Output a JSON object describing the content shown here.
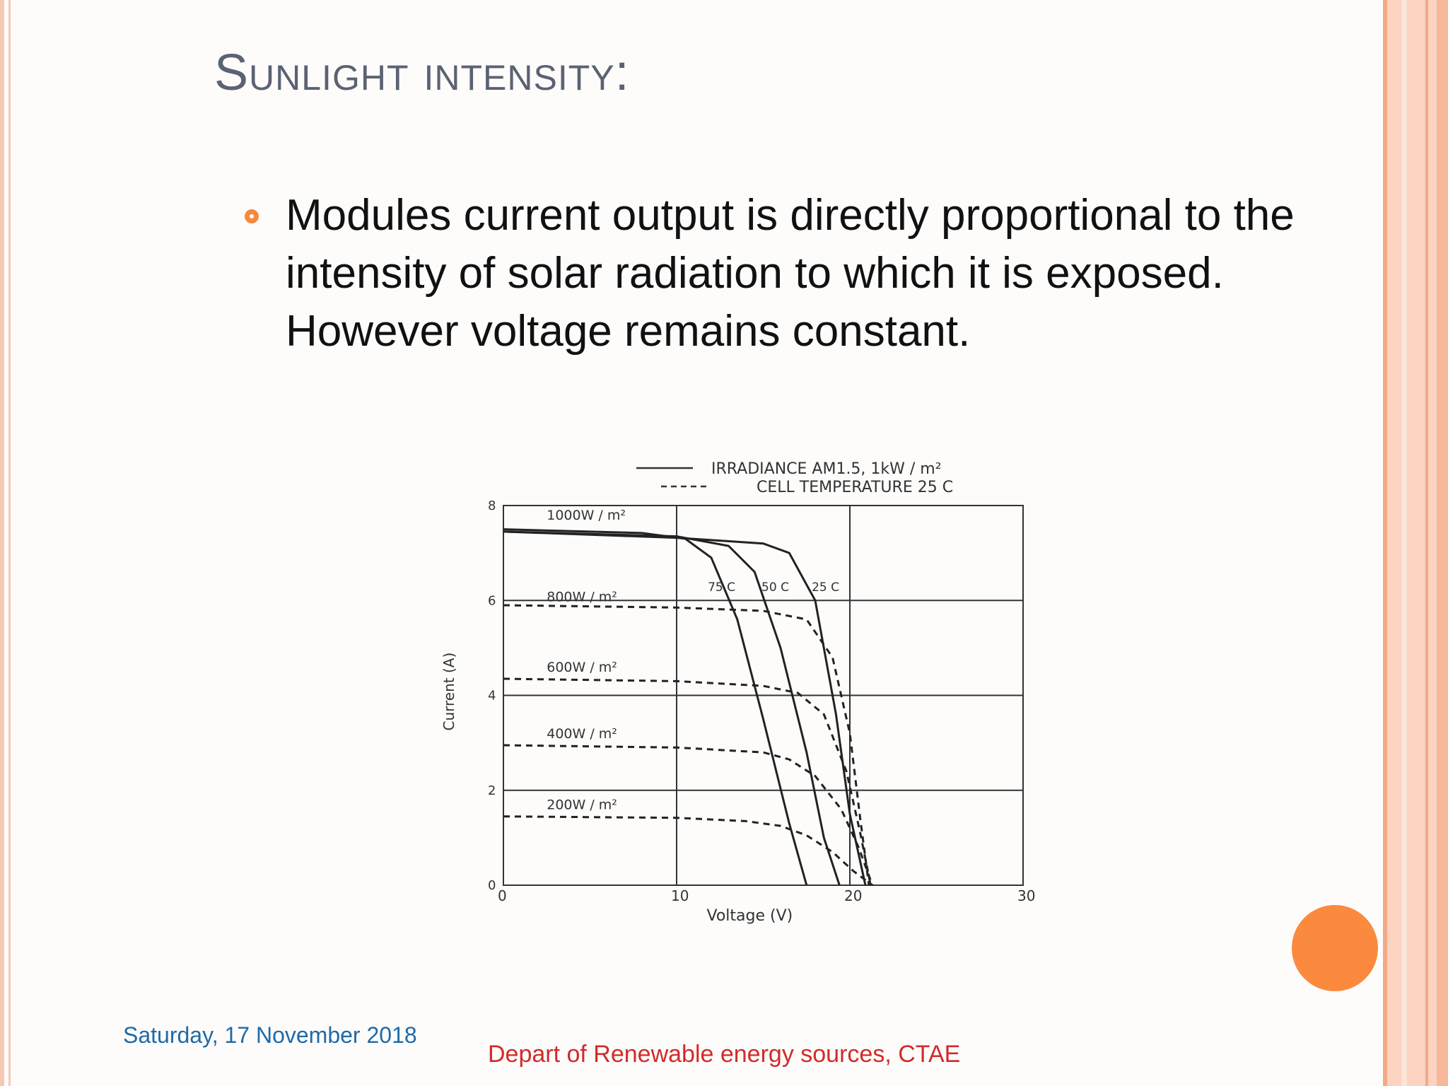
{
  "slide": {
    "title": "Sunlight intensity:",
    "bullet_lines": [
      "Modules current output is directly proportional to the",
      "intensity of solar radiation to which it is exposed.",
      "However voltage remains constant."
    ],
    "footer_date": "Saturday, 17 November 2018",
    "footer_department": "Depart of Renewable energy sources, CTAE"
  },
  "chart_data": {
    "type": "line",
    "xlabel": "Voltage (V)",
    "ylabel": "Current (A)",
    "xlim": [
      0,
      30
    ],
    "ylim": [
      0,
      8
    ],
    "x_ticks": [
      "0",
      "10",
      "20",
      "30"
    ],
    "y_ticks": [
      "0",
      "2",
      "4",
      "6",
      "8"
    ],
    "legend": {
      "solid": "IRRADIANCE AM1.5, 1kW / m²",
      "dashed": "CELL TEMPERATURE 25 C"
    },
    "irradiance_labels": [
      "1000W / m²",
      "800W / m²",
      "600W / m²",
      "400W / m²",
      "200W / m²"
    ],
    "temperature_labels": [
      "75 C",
      "50 C",
      "25 C"
    ],
    "series": [
      {
        "name": "75 C",
        "style": "solid",
        "x": [
          0,
          8,
          10.5,
          12,
          13.5,
          15,
          16.5,
          17.5
        ],
        "y": [
          7.5,
          7.42,
          7.3,
          6.9,
          5.6,
          3.5,
          1.3,
          0
        ]
      },
      {
        "name": "50 C",
        "style": "solid",
        "x": [
          0,
          10,
          13,
          14.5,
          16,
          17.5,
          18.5,
          19.4
        ],
        "y": [
          7.45,
          7.35,
          7.15,
          6.6,
          5.0,
          2.8,
          1.0,
          0
        ]
      },
      {
        "name": "25 C",
        "style": "solid",
        "x": [
          0,
          10,
          15,
          16.5,
          18,
          19.2,
          20,
          20.9
        ],
        "y": [
          7.45,
          7.32,
          7.2,
          7.0,
          6.0,
          3.6,
          1.5,
          0
        ]
      },
      {
        "name": "800W / m²",
        "style": "dashed",
        "x": [
          0,
          10,
          15,
          17.5,
          19,
          20,
          20.6,
          21.1
        ],
        "y": [
          5.9,
          5.85,
          5.78,
          5.6,
          4.8,
          3.2,
          1.4,
          0
        ]
      },
      {
        "name": "600W / m²",
        "style": "dashed",
        "x": [
          0,
          10,
          15,
          17,
          18.5,
          19.8,
          20.6,
          21.2
        ],
        "y": [
          4.35,
          4.3,
          4.2,
          4.05,
          3.6,
          2.4,
          1.1,
          0
        ]
      },
      {
        "name": "400W / m²",
        "style": "dashed",
        "x": [
          0,
          10,
          15,
          16.5,
          18,
          19.5,
          20.5,
          21.3
        ],
        "y": [
          2.95,
          2.9,
          2.8,
          2.65,
          2.3,
          1.6,
          0.8,
          0
        ]
      },
      {
        "name": "200W / m²",
        "style": "dashed",
        "x": [
          0,
          10,
          14,
          16,
          17.5,
          19,
          20.2,
          21.3
        ],
        "y": [
          1.45,
          1.42,
          1.35,
          1.25,
          1.05,
          0.7,
          0.3,
          0
        ]
      }
    ],
    "grid": true
  }
}
